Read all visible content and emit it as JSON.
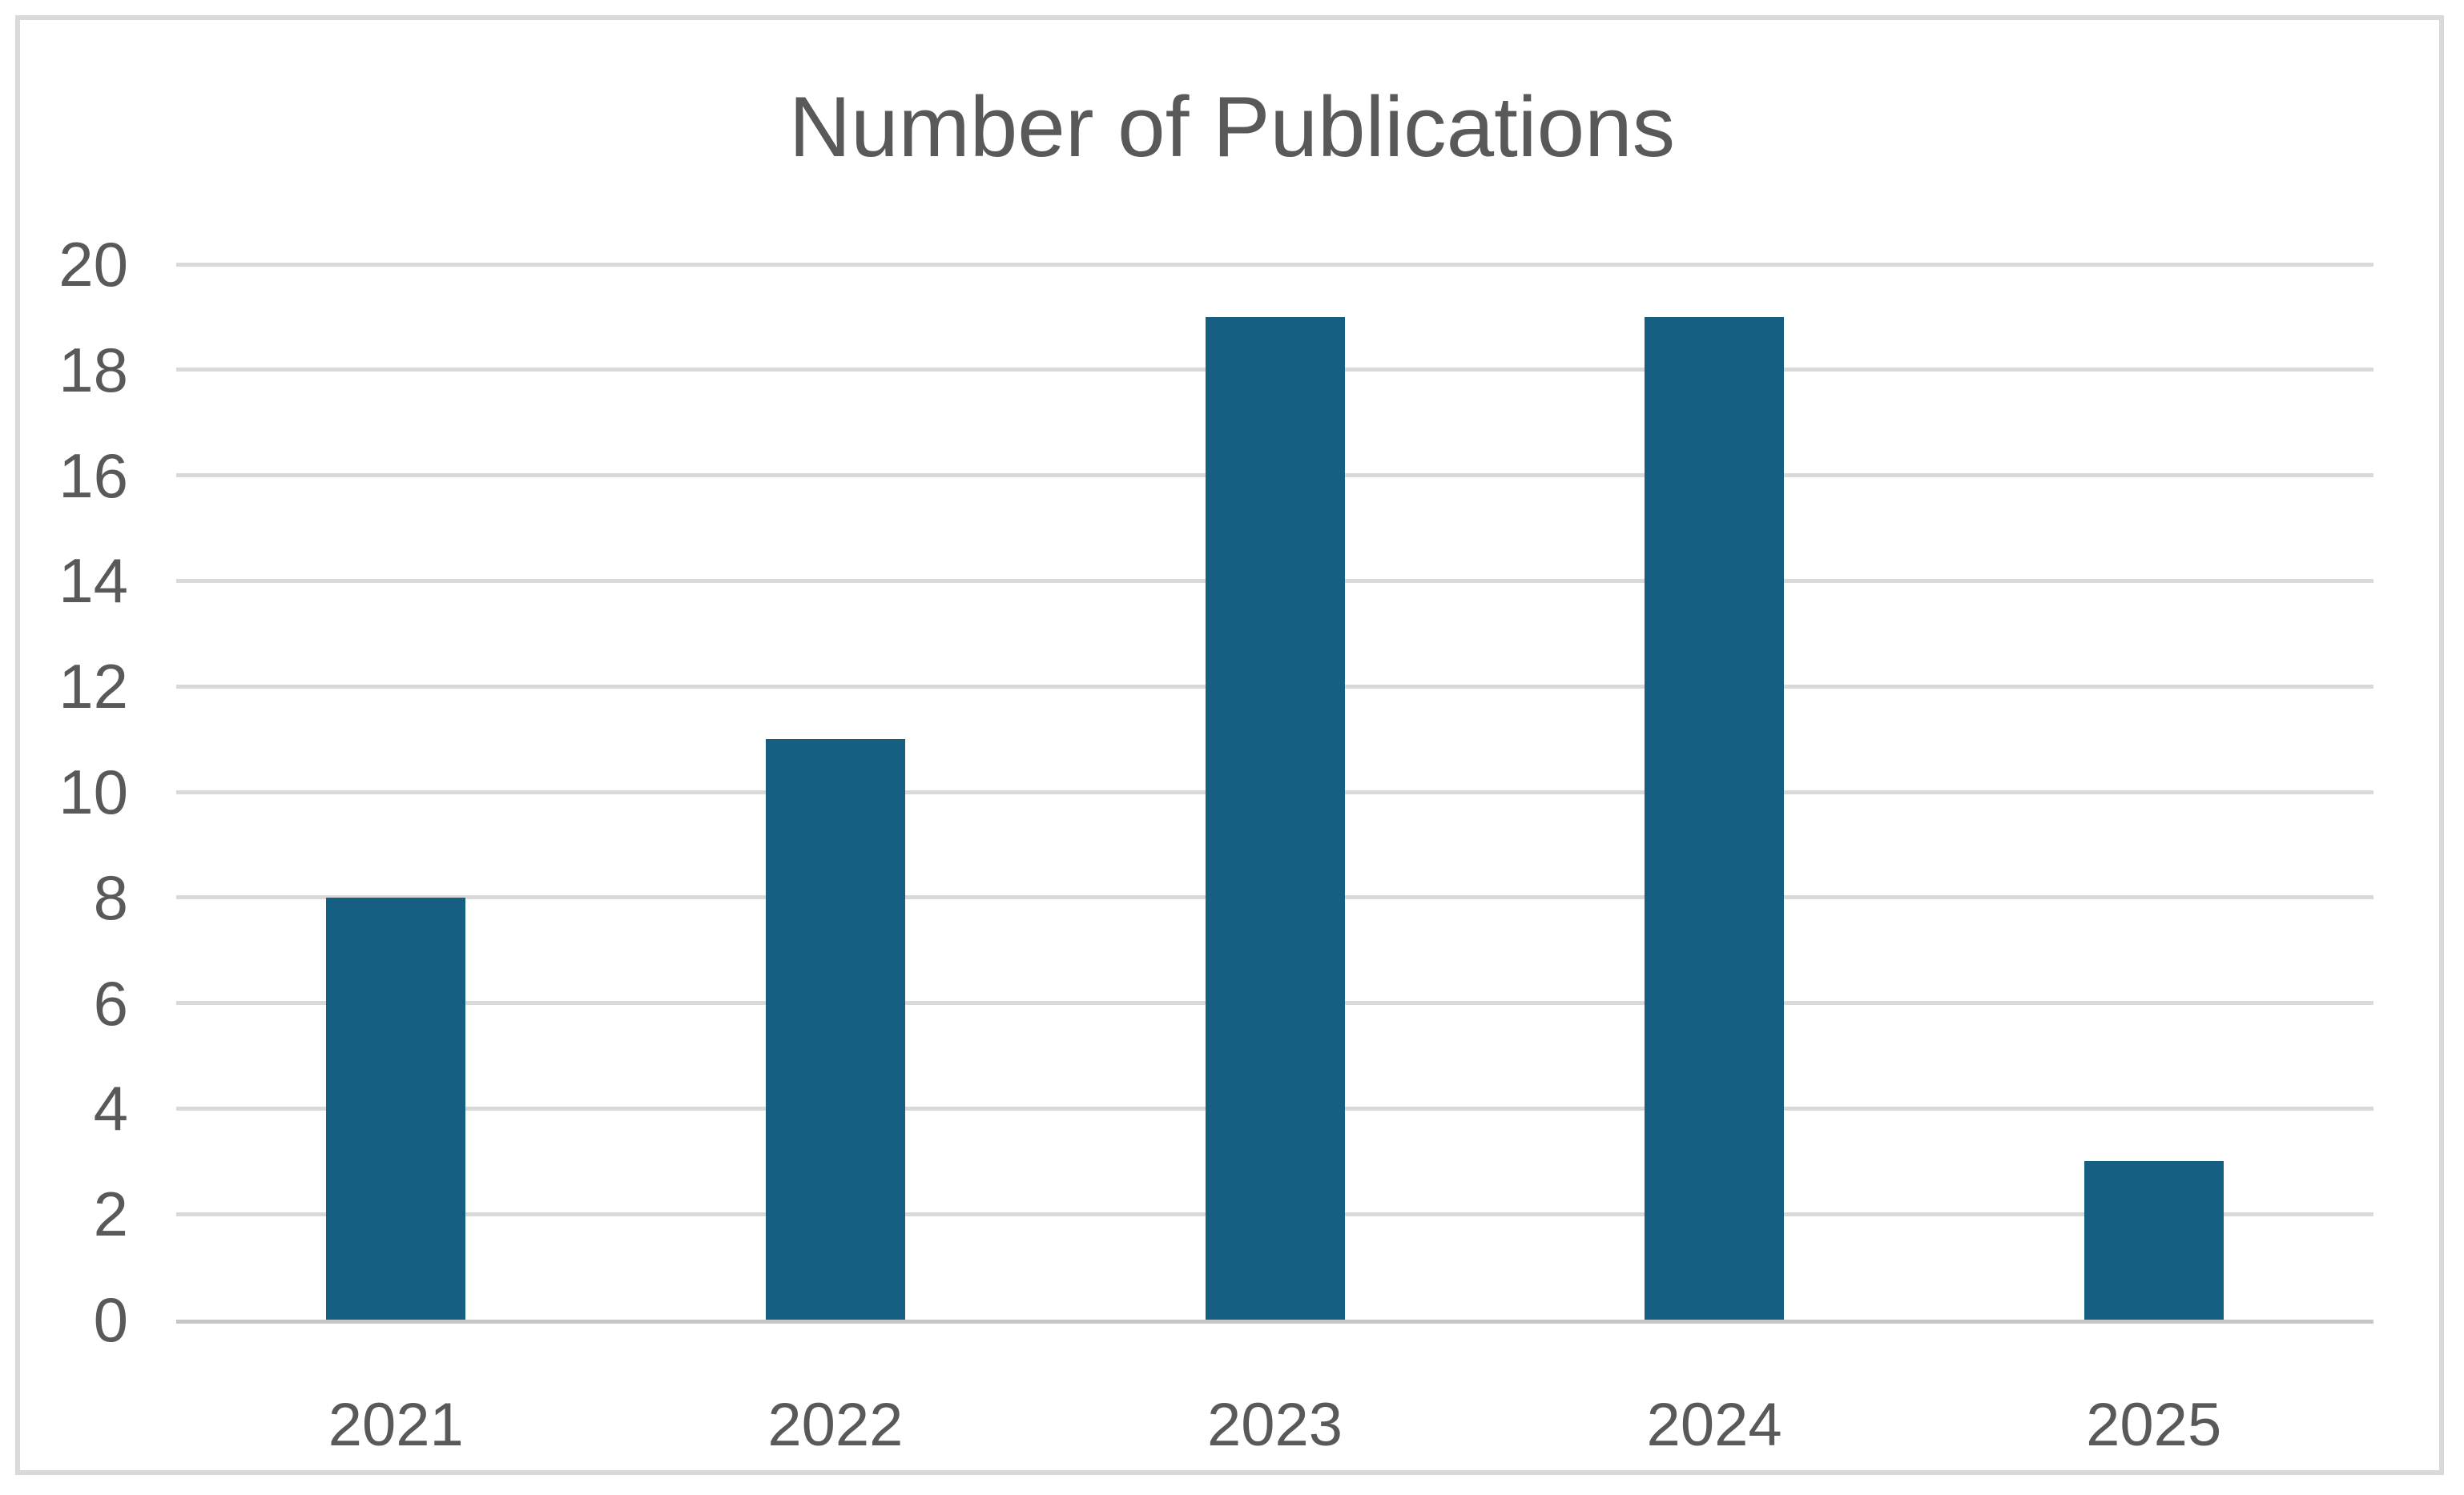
{
  "chart_data": {
    "type": "bar",
    "title": "Number of Publications",
    "categories": [
      "2021",
      "2022",
      "2023",
      "2024",
      "2025"
    ],
    "values": [
      8,
      11,
      19,
      19,
      3
    ],
    "xlabel": "",
    "ylabel": "",
    "ylim": [
      0,
      20
    ],
    "ytick_step": 2,
    "ytick_labels": [
      "0",
      "2",
      "4",
      "6",
      "8",
      "10",
      "12",
      "14",
      "16",
      "18",
      "20"
    ],
    "grid": true,
    "legend": false,
    "colors": {
      "bar_fill": "#156082",
      "gridline": "#d9d9d9",
      "axis_line": "#c6c6c6",
      "text": "#595959",
      "frame_border": "#d9d9d9",
      "background": "#ffffff"
    }
  }
}
